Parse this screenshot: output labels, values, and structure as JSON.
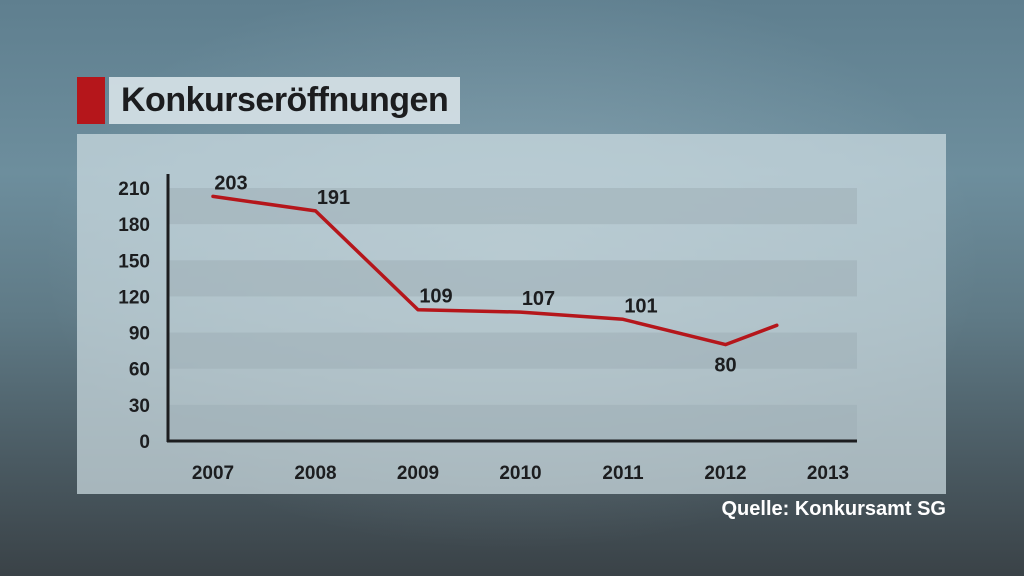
{
  "title": "Konkurseröffnungen",
  "source": "Quelle: Konkursamt SG",
  "colors": {
    "accent": "#b5161b",
    "line": "#b5161b",
    "band": "#9eaeb6",
    "axis": "#1c1d1f",
    "text": "#1c1d1f"
  },
  "chart_data": {
    "type": "line",
    "title": "Konkurseröffnungen",
    "xlabel": "",
    "ylabel": "",
    "categories": [
      "2007",
      "2008",
      "2009",
      "2010",
      "2011",
      "2012",
      "2013"
    ],
    "series": [
      {
        "values": [
          203,
          191,
          109,
          107,
          101,
          80,
          96
        ],
        "labels": [
          "203",
          "191",
          "109",
          "107",
          "101",
          "80",
          ""
        ]
      }
    ],
    "yticks": [
      0,
      30,
      60,
      90,
      120,
      150,
      180,
      210
    ],
    "ylim": [
      0,
      210
    ],
    "grid": "alternating horizontal bands",
    "legend": "none"
  }
}
